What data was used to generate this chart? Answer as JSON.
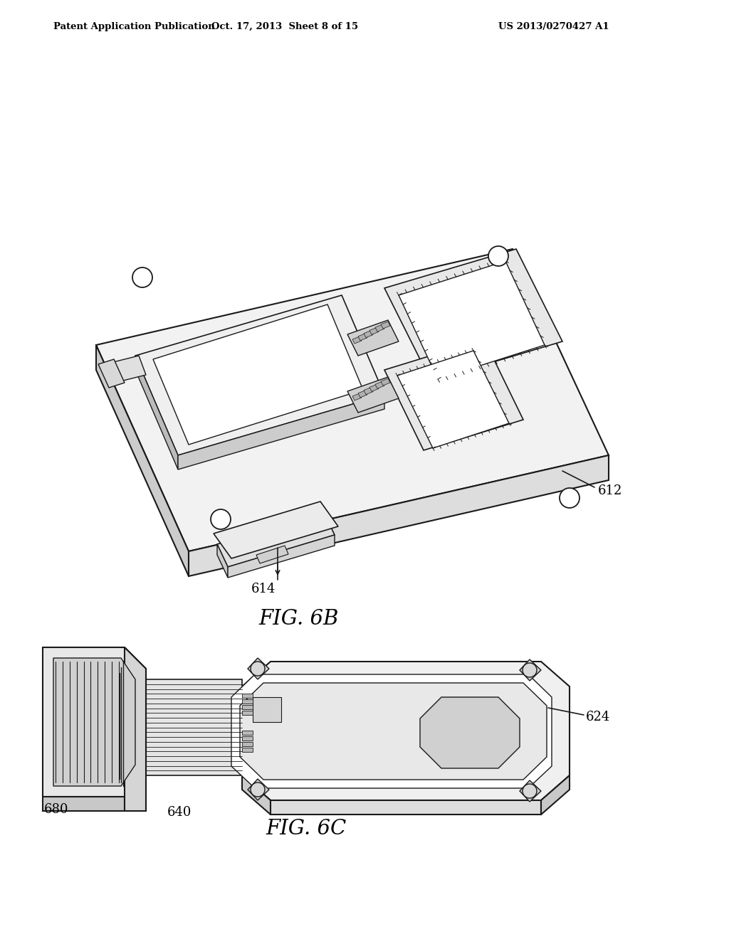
{
  "background_color": "#ffffff",
  "header_left": "Patent Application Publication",
  "header_center": "Oct. 17, 2013  Sheet 8 of 15",
  "header_right": "US 2013/0270427 A1",
  "fig6b_label": "FIG. 6B",
  "fig6c_label": "FIG. 6C",
  "label_612": "612",
  "label_614": "614",
  "label_624": "624",
  "label_640": "640",
  "label_680": "680",
  "line_color": "#1a1a1a",
  "lw_main": 1.4,
  "lw_thin": 0.8
}
